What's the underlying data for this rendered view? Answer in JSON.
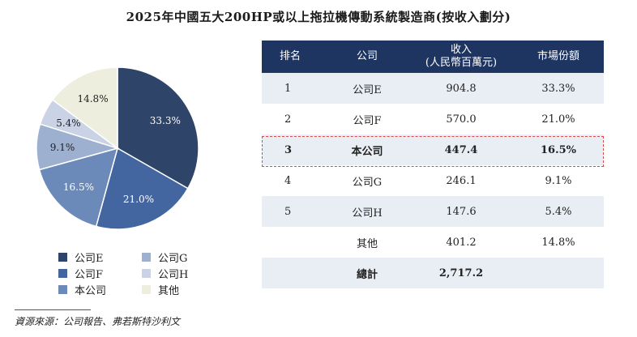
{
  "title": "2025年中國五大200HP或以上拖拉機傳動系統製造商(按收入劃分)",
  "source": "資源來源：公司報告、弗若斯特沙利文",
  "table": {
    "headers": {
      "rank": "排名",
      "company": "公司",
      "revenue": "收入\n(人民幣百萬元)",
      "share": "市場份額"
    },
    "rows": [
      {
        "rank": "1",
        "company": "公司E",
        "revenue": "904.8",
        "share": "33.3%"
      },
      {
        "rank": "2",
        "company": "公司F",
        "revenue": "570.0",
        "share": "21.0%"
      },
      {
        "rank": "3",
        "company": "本公司",
        "revenue": "447.4",
        "share": "16.5%"
      },
      {
        "rank": "4",
        "company": "公司G",
        "revenue": "246.1",
        "share": "9.1%"
      },
      {
        "rank": "5",
        "company": "公司H",
        "revenue": "147.6",
        "share": "5.4%"
      },
      {
        "rank": "",
        "company": "其他",
        "revenue": "401.2",
        "share": "14.8%"
      },
      {
        "rank": "",
        "company": "總計",
        "revenue": "2,717.2",
        "share": ""
      }
    ]
  },
  "chart_data": {
    "type": "pie",
    "title": "",
    "categories": [
      "公司E",
      "公司F",
      "本公司",
      "公司G",
      "公司H",
      "其他"
    ],
    "values": [
      33.3,
      21.0,
      16.5,
      9.1,
      5.4,
      14.8
    ],
    "labels": [
      "33.3%",
      "21.0%",
      "16.5%",
      "9.1%",
      "5.4%",
      "14.8%"
    ],
    "colors": [
      "#2e4469",
      "#4466a0",
      "#6b89b9",
      "#9eb0cf",
      "#c9d3e5",
      "#eeeedf"
    ],
    "legend_position": "bottom"
  }
}
